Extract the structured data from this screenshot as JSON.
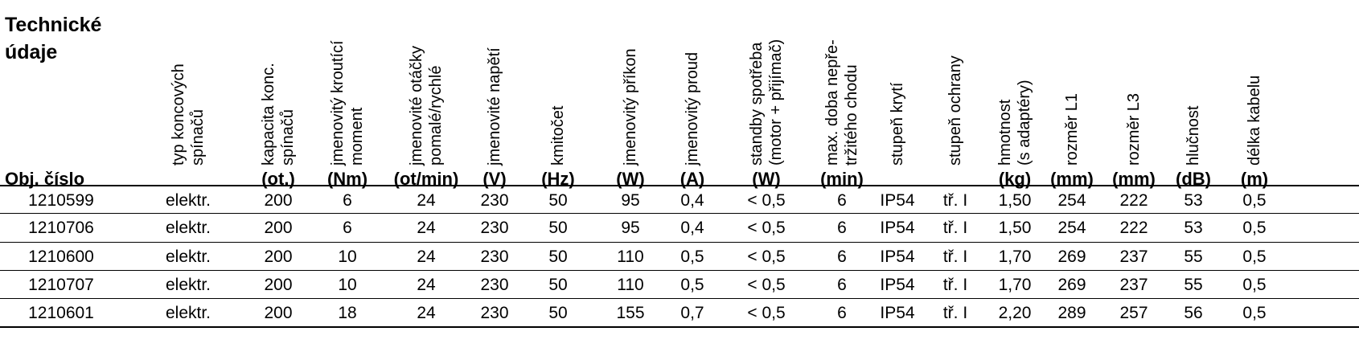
{
  "table": {
    "title_line1": "Technické",
    "title_line2": "údaje",
    "id_header": "Obj. číslo",
    "columns": [
      {
        "lines": [
          "typ koncových",
          "spínačů"
        ],
        "unit": ""
      },
      {
        "lines": [
          "kapacita konc.",
          "spínačů"
        ],
        "unit": "(ot.)"
      },
      {
        "lines": [
          "jmenovitý kroutící",
          "moment"
        ],
        "unit": "(Nm)"
      },
      {
        "lines": [
          "jmenovité otáčky",
          "pomalé/rychlé"
        ],
        "unit": "(ot/min)"
      },
      {
        "lines": [
          "jmenovité napětí"
        ],
        "unit": "(V)"
      },
      {
        "lines": [
          "kmitočet"
        ],
        "unit": "(Hz)"
      },
      {
        "lines": [
          "jmenovitý příkon"
        ],
        "unit": "(W)"
      },
      {
        "lines": [
          "jmenovitý proud"
        ],
        "unit": "(A)"
      },
      {
        "lines": [
          "standby spotřeba",
          "(motor + přijímač)"
        ],
        "unit": "(W)"
      },
      {
        "lines": [
          "max. doba nepře-",
          "tržitého chodu"
        ],
        "unit": "(min)"
      },
      {
        "lines": [
          "stupeň krytí"
        ],
        "unit": ""
      },
      {
        "lines": [
          "stupeň ochrany"
        ],
        "unit": ""
      },
      {
        "lines": [
          "hmotnost",
          "(s adaptéry)"
        ],
        "unit": "(kg)"
      },
      {
        "lines": [
          "rozměr L1"
        ],
        "unit": "(mm)"
      },
      {
        "lines": [
          "rozměr L3"
        ],
        "unit": "(mm)"
      },
      {
        "lines": [
          "hlučnost"
        ],
        "unit": "(dB)"
      },
      {
        "lines": [
          "délka kabelu"
        ],
        "unit": "(m)"
      }
    ],
    "rows": [
      [
        "1210599",
        "elektr.",
        "200",
        "6",
        "24",
        "230",
        "50",
        "95",
        "0,4",
        "< 0,5",
        "6",
        "IP54",
        "tř. I",
        "1,50",
        "254",
        "222",
        "53",
        "0,5"
      ],
      [
        "1210706",
        "elektr.",
        "200",
        "6",
        "24",
        "230",
        "50",
        "95",
        "0,4",
        "< 0,5",
        "6",
        "IP54",
        "tř. I",
        "1,50",
        "254",
        "222",
        "53",
        "0,5"
      ],
      [
        "1210600",
        "elektr.",
        "200",
        "10",
        "24",
        "230",
        "50",
        "110",
        "0,5",
        "< 0,5",
        "6",
        "IP54",
        "tř. I",
        "1,70",
        "269",
        "237",
        "55",
        "0,5"
      ],
      [
        "1210707",
        "elektr.",
        "200",
        "10",
        "24",
        "230",
        "50",
        "110",
        "0,5",
        "< 0,5",
        "6",
        "IP54",
        "tř. I",
        "1,70",
        "269",
        "237",
        "55",
        "0,5"
      ],
      [
        "1210601",
        "elektr.",
        "200",
        "18",
        "24",
        "230",
        "50",
        "155",
        "0,7",
        "< 0,5",
        "6",
        "IP54",
        "tř. I",
        "2,20",
        "289",
        "257",
        "56",
        "0,5"
      ]
    ]
  }
}
